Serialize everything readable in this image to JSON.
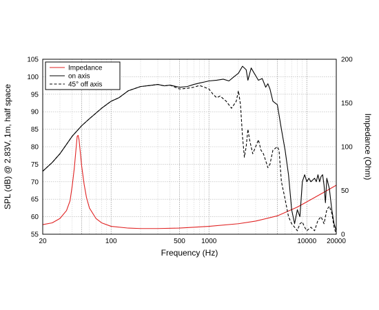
{
  "chart_data": {
    "type": "line",
    "xlabel": "Frequency (Hz)",
    "ylabel": "SPL (dB) @ 2.83V, 1m, half space",
    "y2label": "Impedance (Ohm)",
    "xscale": "log",
    "xlim": [
      20,
      20000
    ],
    "ylim": [
      55,
      105
    ],
    "y2lim": [
      0,
      200
    ],
    "grid": true,
    "legend_position": "top-left",
    "x_tick_labels": [
      "20",
      "100",
      "500",
      "1000",
      "10000",
      "20000"
    ],
    "y_tick_labels": [
      "55",
      "60",
      "65",
      "70",
      "75",
      "80",
      "85",
      "90",
      "95",
      "100",
      "105"
    ],
    "y2_tick_labels": [
      "0",
      "50",
      "100",
      "150",
      "200"
    ],
    "series": [
      {
        "name": "Impedance",
        "axis": "right",
        "color": "#e02020",
        "dash": "solid",
        "points": [
          [
            20,
            11
          ],
          [
            25,
            13
          ],
          [
            30,
            18
          ],
          [
            35,
            27
          ],
          [
            38,
            38
          ],
          [
            40,
            55
          ],
          [
            42,
            75
          ],
          [
            44,
            100
          ],
          [
            45,
            112
          ],
          [
            46,
            113
          ],
          [
            47,
            108
          ],
          [
            48,
            98
          ],
          [
            50,
            78
          ],
          [
            53,
            57
          ],
          [
            56,
            42
          ],
          [
            60,
            30
          ],
          [
            70,
            18
          ],
          [
            80,
            13
          ],
          [
            100,
            9
          ],
          [
            150,
            7
          ],
          [
            200,
            6.5
          ],
          [
            300,
            6.5
          ],
          [
            500,
            7
          ],
          [
            1000,
            9
          ],
          [
            2000,
            12
          ],
          [
            3000,
            15
          ],
          [
            5000,
            21
          ],
          [
            8000,
            31
          ],
          [
            10000,
            37
          ],
          [
            15000,
            48
          ],
          [
            20000,
            56
          ]
        ]
      },
      {
        "name": "on axis",
        "axis": "left",
        "color": "#000000",
        "dash": "solid",
        "points": [
          [
            20,
            73
          ],
          [
            25,
            75.5
          ],
          [
            30,
            78
          ],
          [
            40,
            83
          ],
          [
            50,
            86
          ],
          [
            60,
            88
          ],
          [
            80,
            91
          ],
          [
            100,
            93
          ],
          [
            120,
            94
          ],
          [
            150,
            96
          ],
          [
            200,
            97.2
          ],
          [
            250,
            97.5
          ],
          [
            300,
            97.8
          ],
          [
            350,
            97.4
          ],
          [
            400,
            97.6
          ],
          [
            500,
            97
          ],
          [
            600,
            97.2
          ],
          [
            700,
            97.8
          ],
          [
            800,
            98.2
          ],
          [
            900,
            98.5
          ],
          [
            1000,
            98.8
          ],
          [
            1200,
            99
          ],
          [
            1400,
            99.3
          ],
          [
            1600,
            98.8
          ],
          [
            1800,
            100
          ],
          [
            2000,
            101
          ],
          [
            2200,
            103
          ],
          [
            2400,
            102
          ],
          [
            2500,
            99
          ],
          [
            2700,
            102.5
          ],
          [
            2900,
            101
          ],
          [
            3200,
            99
          ],
          [
            3500,
            99.5
          ],
          [
            3800,
            97
          ],
          [
            4000,
            98
          ],
          [
            4200,
            96.5
          ],
          [
            4500,
            93
          ],
          [
            5000,
            92
          ],
          [
            5500,
            85
          ],
          [
            6000,
            79
          ],
          [
            6500,
            72
          ],
          [
            7000,
            62
          ],
          [
            7500,
            58
          ],
          [
            8000,
            62
          ],
          [
            8500,
            60
          ],
          [
            9000,
            70
          ],
          [
            9500,
            72
          ],
          [
            10000,
            70
          ],
          [
            10500,
            71
          ],
          [
            11000,
            70
          ],
          [
            12000,
            71
          ],
          [
            12500,
            70
          ],
          [
            13000,
            72
          ],
          [
            13500,
            70
          ],
          [
            14000,
            71.5
          ],
          [
            14500,
            72
          ],
          [
            15000,
            69
          ],
          [
            15500,
            64
          ],
          [
            16000,
            71
          ],
          [
            17000,
            68
          ],
          [
            18000,
            62
          ],
          [
            19000,
            58
          ],
          [
            20000,
            56
          ]
        ]
      },
      {
        "name": "45° off axis",
        "axis": "left",
        "color": "#000000",
        "dash": "dashed",
        "points": [
          [
            20,
            73
          ],
          [
            25,
            75.5
          ],
          [
            30,
            78
          ],
          [
            40,
            83
          ],
          [
            50,
            86
          ],
          [
            60,
            88
          ],
          [
            80,
            91
          ],
          [
            100,
            93
          ],
          [
            120,
            94
          ],
          [
            150,
            96
          ],
          [
            200,
            97.2
          ],
          [
            250,
            97.5
          ],
          [
            300,
            97.8
          ],
          [
            350,
            97.4
          ],
          [
            400,
            97.6
          ],
          [
            500,
            96.5
          ],
          [
            600,
            96.7
          ],
          [
            700,
            97
          ],
          [
            800,
            97.5
          ],
          [
            900,
            97
          ],
          [
            1000,
            96.5
          ],
          [
            1100,
            95
          ],
          [
            1200,
            94
          ],
          [
            1300,
            94.5
          ],
          [
            1500,
            93
          ],
          [
            1700,
            91
          ],
          [
            1900,
            93
          ],
          [
            2000,
            96
          ],
          [
            2100,
            92
          ],
          [
            2200,
            83
          ],
          [
            2300,
            77
          ],
          [
            2400,
            80
          ],
          [
            2500,
            85
          ],
          [
            2600,
            82
          ],
          [
            2800,
            78
          ],
          [
            3000,
            80
          ],
          [
            3200,
            82
          ],
          [
            3400,
            79
          ],
          [
            3600,
            78
          ],
          [
            3800,
            76
          ],
          [
            4000,
            74
          ],
          [
            4200,
            75
          ],
          [
            4500,
            79
          ],
          [
            5000,
            80
          ],
          [
            5200,
            79
          ],
          [
            5500,
            70
          ],
          [
            6000,
            65
          ],
          [
            6500,
            60
          ],
          [
            7000,
            58
          ],
          [
            7500,
            57
          ],
          [
            8000,
            56
          ],
          [
            8500,
            58
          ],
          [
            9000,
            58.5
          ],
          [
            9500,
            57
          ],
          [
            10000,
            56
          ],
          [
            11000,
            57
          ],
          [
            12000,
            56
          ],
          [
            13000,
            59
          ],
          [
            14000,
            60
          ],
          [
            15000,
            58
          ],
          [
            16000,
            62
          ],
          [
            17000,
            63
          ],
          [
            18000,
            61
          ],
          [
            19000,
            57
          ],
          [
            20000,
            55
          ]
        ]
      }
    ]
  }
}
